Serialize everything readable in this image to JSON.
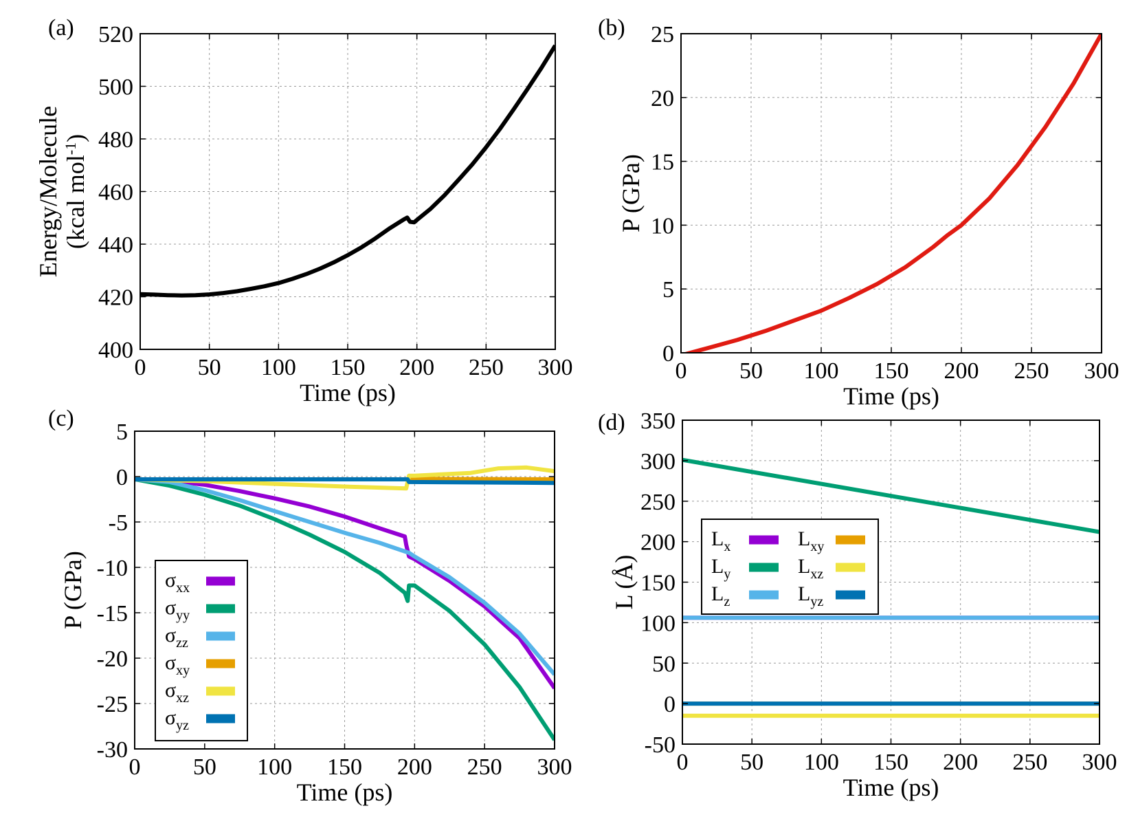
{
  "chart_data": [
    {
      "type": "line",
      "panel_label": "(a)",
      "xlabel": "Time (ps)",
      "ylabel_line1": "Energy/Molecule",
      "ylabel_line2": "(kcal mol",
      "ylabel_sup": "-1",
      "ylabel_close": ")",
      "xlim": [
        0,
        300
      ],
      "ylim": [
        400,
        520
      ],
      "xticks": [
        0,
        50,
        100,
        150,
        200,
        250,
        300
      ],
      "yticks": [
        400,
        420,
        440,
        460,
        480,
        500,
        520
      ],
      "series": [
        {
          "name": "Energy",
          "color": "#000000",
          "x": [
            0,
            10,
            20,
            30,
            40,
            50,
            60,
            70,
            80,
            90,
            100,
            110,
            120,
            130,
            140,
            150,
            160,
            170,
            180,
            190,
            193,
            195,
            198,
            200,
            210,
            220,
            230,
            240,
            250,
            260,
            270,
            280,
            290,
            300
          ],
          "y": [
            421,
            420.8,
            420.6,
            420.5,
            420.6,
            420.9,
            421.4,
            422.1,
            423,
            424,
            425.2,
            426.8,
            428.6,
            430.7,
            433.1,
            435.8,
            438.8,
            442.2,
            445.9,
            449.2,
            450.1,
            448.5,
            448.3,
            449.2,
            453.5,
            458.6,
            464.4,
            470.3,
            476.8,
            483.8,
            491.3,
            499,
            507,
            515.5
          ]
        }
      ]
    },
    {
      "type": "line",
      "panel_label": "(b)",
      "xlabel": "Time (ps)",
      "ylabel": "P (GPa)",
      "xlim": [
        0,
        300
      ],
      "ylim": [
        0,
        25
      ],
      "xticks": [
        0,
        50,
        100,
        150,
        200,
        250,
        300
      ],
      "yticks": [
        0,
        5,
        10,
        15,
        20,
        25
      ],
      "series": [
        {
          "name": "Pressure",
          "color": "#e01b12",
          "x": [
            0,
            20,
            40,
            60,
            80,
            100,
            120,
            140,
            160,
            180,
            190,
            200,
            220,
            240,
            260,
            280,
            300
          ],
          "y": [
            -0.2,
            0.4,
            1,
            1.7,
            2.5,
            3.3,
            4.3,
            5.4,
            6.7,
            8.3,
            9.2,
            10,
            12.1,
            14.7,
            17.7,
            21.1,
            25
          ]
        }
      ]
    },
    {
      "type": "line",
      "panel_label": "(c)",
      "xlabel": "Time (ps)",
      "ylabel": "P (GPa)",
      "xlim": [
        0,
        300
      ],
      "ylim": [
        -30,
        5
      ],
      "xticks": [
        0,
        50,
        100,
        150,
        200,
        250,
        300
      ],
      "yticks": [
        -30,
        -25,
        -20,
        -15,
        -10,
        -5,
        0,
        5
      ],
      "legend_position": "center-left",
      "series": [
        {
          "name": "σxx",
          "base": "σ",
          "sub": "xx",
          "color": "#9400d3",
          "x": [
            0,
            25,
            50,
            75,
            100,
            125,
            150,
            175,
            193,
            194,
            196,
            200,
            225,
            250,
            275,
            300
          ],
          "y": [
            -0.3,
            -0.45,
            -0.9,
            -1.6,
            -2.4,
            -3.3,
            -4.4,
            -5.7,
            -6.6,
            -7.5,
            -8.8,
            -9.1,
            -11.5,
            -14.3,
            -17.8,
            -23.3
          ]
        },
        {
          "name": "σyy",
          "base": "σ",
          "sub": "yy",
          "color": "#009e73",
          "x": [
            0,
            25,
            50,
            75,
            100,
            125,
            150,
            175,
            193,
            195,
            196,
            200,
            225,
            250,
            275,
            300
          ],
          "y": [
            -0.3,
            -1,
            -2,
            -3.2,
            -4.7,
            -6.4,
            -8.3,
            -10.6,
            -12.8,
            -13.7,
            -12,
            -12,
            -14.8,
            -18.5,
            -23.2,
            -29
          ]
        },
        {
          "name": "σzz",
          "base": "σ",
          "sub": "zz",
          "color": "#56b4e9",
          "x": [
            0,
            25,
            50,
            75,
            100,
            125,
            150,
            175,
            196,
            200,
            225,
            250,
            275,
            300
          ],
          "y": [
            -0.3,
            -0.6,
            -1.5,
            -2.6,
            -3.8,
            -5,
            -6.2,
            -7.3,
            -8.4,
            -8.8,
            -11.1,
            -13.9,
            -17.3,
            -21.8
          ]
        },
        {
          "name": "σxy",
          "base": "σ",
          "sub": "xy",
          "color": "#e69f00",
          "x": [
            0,
            195,
            196,
            300
          ],
          "y": [
            -0.3,
            -0.3,
            -0.25,
            -0.3
          ]
        },
        {
          "name": "σxz",
          "base": "σ",
          "sub": "xz",
          "color": "#f0e442",
          "x": [
            0,
            50,
            100,
            150,
            194,
            196,
            200,
            240,
            260,
            280,
            300
          ],
          "y": [
            -0.3,
            -0.5,
            -0.8,
            -1.1,
            -1.3,
            0.1,
            0.1,
            0.4,
            0.9,
            1,
            0.6
          ]
        },
        {
          "name": "σyz",
          "base": "σ",
          "sub": "yz",
          "color": "#0072b2",
          "x": [
            0,
            195,
            196,
            300
          ],
          "y": [
            -0.3,
            -0.3,
            -0.6,
            -0.7
          ]
        }
      ]
    },
    {
      "type": "line",
      "panel_label": "(d)",
      "xlabel": "Time (ps)",
      "ylabel": "L (Å)",
      "xlim": [
        0,
        300
      ],
      "ylim": [
        -50,
        350
      ],
      "xticks": [
        0,
        50,
        100,
        150,
        200,
        250,
        300
      ],
      "yticks": [
        -50,
        0,
        50,
        100,
        150,
        200,
        250,
        300,
        350
      ],
      "legend_position": "upper-left",
      "series": [
        {
          "name": "Lx",
          "base": "L",
          "sub": "x",
          "color": "#9400d3",
          "x": [
            0,
            300
          ],
          "y": [
            106,
            106
          ]
        },
        {
          "name": "Ly",
          "base": "L",
          "sub": "y",
          "color": "#009e73",
          "x": [
            0,
            300
          ],
          "y": [
            301,
            212
          ]
        },
        {
          "name": "Lz",
          "base": "L",
          "sub": "z",
          "color": "#56b4e9",
          "x": [
            0,
            300
          ],
          "y": [
            106,
            106
          ]
        },
        {
          "name": "Lxy",
          "base": "L",
          "sub": "xy",
          "color": "#e69f00",
          "x": [
            0,
            300
          ],
          "y": [
            0,
            0
          ]
        },
        {
          "name": "Lxz",
          "base": "L",
          "sub": "xz",
          "color": "#f0e442",
          "x": [
            0,
            300
          ],
          "y": [
            -15,
            -15
          ]
        },
        {
          "name": "Lyz",
          "base": "L",
          "sub": "yz",
          "color": "#0072b2",
          "x": [
            0,
            300
          ],
          "y": [
            0,
            0
          ]
        }
      ]
    }
  ]
}
